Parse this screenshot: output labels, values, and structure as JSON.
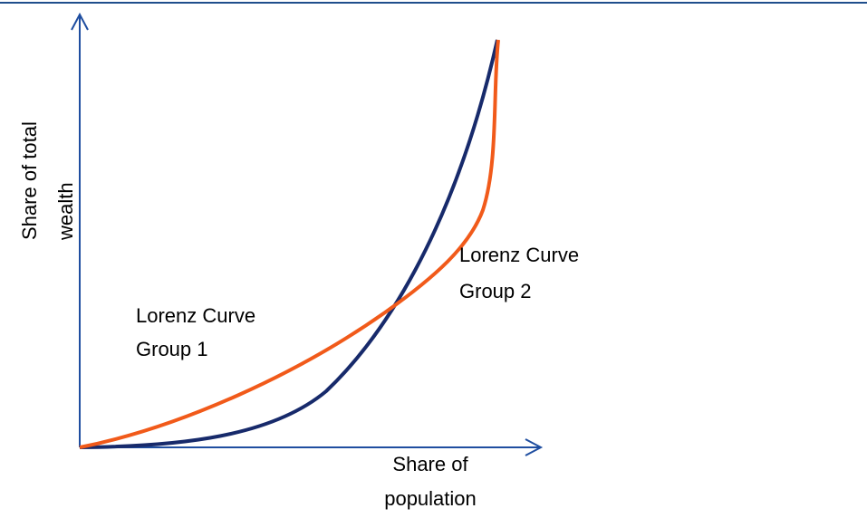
{
  "axes": {
    "y_label": [
      "Share of total",
      "wealth"
    ],
    "x_label": [
      "Share of",
      "population"
    ]
  },
  "curves": [
    {
      "label": [
        "Lorenz Curve",
        "Group 1"
      ]
    },
    {
      "label": [
        "Lorenz Curve",
        "Group 2"
      ]
    }
  ]
}
